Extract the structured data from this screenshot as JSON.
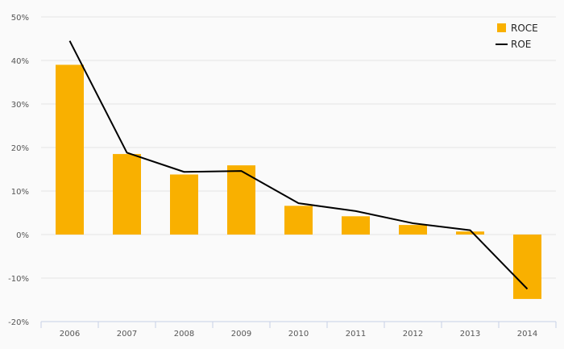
{
  "chart_data": {
    "type": "bar",
    "categories": [
      "2006",
      "2007",
      "2008",
      "2009",
      "2010",
      "2011",
      "2012",
      "2013",
      "2014"
    ],
    "series": [
      {
        "name": "ROCE",
        "type": "bar",
        "color": "#f9b000",
        "values": [
          39,
          18.5,
          13.8,
          15.9,
          6.6,
          4.2,
          2.2,
          0.7,
          -14.8
        ]
      },
      {
        "name": "ROE",
        "type": "line",
        "color": "#000000",
        "values": [
          44.5,
          18.8,
          14.4,
          14.6,
          7.2,
          5.4,
          2.6,
          1.0,
          -12.5
        ]
      }
    ],
    "y_ticks": [
      "50%",
      "40%",
      "30%",
      "20%",
      "10%",
      "0%",
      "-10%",
      "-20%"
    ],
    "ylim": [
      -20,
      50
    ],
    "y_unit": "%",
    "grid": true,
    "legend_position": "top-right"
  }
}
